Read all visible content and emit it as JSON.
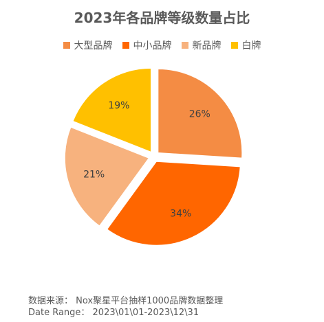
{
  "chart_data": {
    "type": "pie",
    "title": "2023年各品牌等级数量占比",
    "series": [
      {
        "name": "大型品牌",
        "value": 26,
        "label": "26%",
        "color": "#F48C44"
      },
      {
        "name": "中小品牌",
        "value": 34,
        "label": "34%",
        "color": "#FF6600"
      },
      {
        "name": "新品牌",
        "value": 21,
        "label": "21%",
        "color": "#F7B27E"
      },
      {
        "name": "白牌",
        "value": 19,
        "label": "19%",
        "color": "#FFC000"
      }
    ],
    "legend_position": "top"
  },
  "footer": {
    "source": "数据来源： Nox聚星平台抽样1000品牌数据整理",
    "date_range": "Date Range： 2023\\01\\01-2023\\12\\31"
  }
}
